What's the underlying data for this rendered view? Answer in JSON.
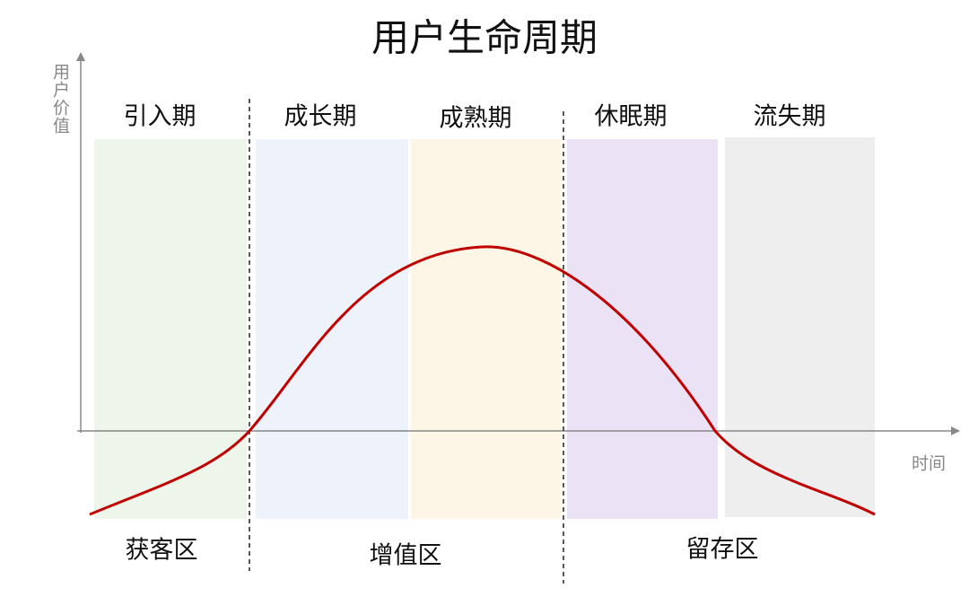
{
  "title": "用户生命周期",
  "axes": {
    "y_label": "用户价值",
    "x_label": "时间"
  },
  "stages": [
    "引入期",
    "成长期",
    "成熟期",
    "休眠期",
    "流失期"
  ],
  "zones": [
    "获客区",
    "增值区",
    "留存区"
  ]
}
